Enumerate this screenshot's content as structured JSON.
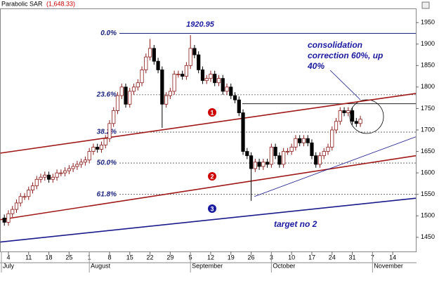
{
  "chart_data": {
    "type": "candlestick",
    "indicator_label": "Parabolic SAR",
    "indicator_value": "(1,648.33)",
    "peak_label": "1920.95",
    "note_lines": [
      "consolidation",
      "correction  60%, up",
      "40%"
    ],
    "target_label": "target no 2",
    "markers": [
      {
        "label": "1",
        "color": "#cc0000"
      },
      {
        "label": "2",
        "color": "#cc0000"
      },
      {
        "label": "3",
        "color": "#1a1aa0"
      }
    ],
    "months": [
      "July",
      "August",
      "September",
      "October",
      "November"
    ],
    "categories": [
      null,
      "4",
      null,
      null,
      null,
      null,
      "11",
      null,
      null,
      null,
      null,
      "18",
      null,
      null,
      null,
      null,
      "25",
      null,
      null,
      null,
      null,
      "1",
      null,
      null,
      null,
      null,
      "8",
      null,
      null,
      null,
      null,
      "15",
      null,
      null,
      null,
      null,
      "22",
      null,
      null,
      null,
      null,
      "29",
      null,
      null,
      null,
      null,
      "5",
      null,
      null,
      null,
      null,
      "12",
      null,
      null,
      null,
      null,
      "19",
      null,
      null,
      null,
      null,
      "26",
      null,
      null,
      null,
      null,
      "3",
      null,
      null,
      null,
      null,
      "10",
      null,
      null,
      null,
      null,
      "17",
      null,
      null,
      null,
      null,
      "24",
      null,
      null,
      null,
      null,
      "31",
      null,
      null,
      null,
      null,
      "7",
      null,
      null,
      null,
      null,
      "14",
      null
    ],
    "open": [
      1495,
      1485,
      1505,
      1515,
      1530,
      1545,
      1545,
      1560,
      1570,
      1585,
      1590,
      1595,
      1585,
      1590,
      1600,
      1600,
      1605,
      1610,
      1615,
      1620,
      1625,
      1630,
      1650,
      1660,
      1655,
      1665,
      1680,
      1715,
      1745,
      1780,
      1800,
      1760,
      1790,
      1800,
      1810,
      1840,
      1870,
      1890,
      1860,
      1840,
      1760,
      1780,
      1790,
      1830,
      1830,
      1825,
      1850,
      1890,
      1875,
      1840,
      1815,
      1820,
      1830,
      1810,
      1820,
      1790,
      1800,
      1780,
      1770,
      1740,
      1650,
      1640,
      1610,
      1625,
      1615,
      1625,
      1620,
      1660,
      1640,
      1620,
      1650,
      1650,
      1660,
      1680,
      1670,
      1680,
      1670,
      1640,
      1620,
      1640,
      1650,
      1660,
      1700,
      1720,
      1745,
      1740,
      1745,
      1720,
      1715,
      null,
      null,
      null,
      null,
      null,
      null,
      null,
      null,
      null
    ],
    "high": [
      1503,
      1513,
      1523,
      1538,
      1553,
      1553,
      1568,
      1578,
      1593,
      1598,
      1603,
      1603,
      1598,
      1608,
      1608,
      1613,
      1618,
      1623,
      1628,
      1633,
      1638,
      1658,
      1668,
      1668,
      1673,
      1688,
      1723,
      1753,
      1788,
      1808,
      1808,
      1798,
      1808,
      1818,
      1848,
      1878,
      1912,
      1898,
      1868,
      1848,
      1788,
      1798,
      1838,
      1838,
      1838,
      1858,
      1921,
      1898,
      1883,
      1848,
      1828,
      1838,
      1838,
      1828,
      1828,
      1808,
      1808,
      1788,
      1778,
      1748,
      1658,
      1648,
      1633,
      1633,
      1633,
      1633,
      1668,
      1668,
      1648,
      1658,
      1658,
      1668,
      1688,
      1688,
      1688,
      1688,
      1678,
      1648,
      1648,
      1658,
      1668,
      1708,
      1728,
      1753,
      1753,
      1753,
      1753,
      1728,
      1733,
      null,
      null,
      null,
      null,
      null,
      null,
      null,
      null,
      null
    ],
    "low": [
      1477,
      1477,
      1497,
      1507,
      1522,
      1537,
      1537,
      1552,
      1562,
      1577,
      1582,
      1577,
      1577,
      1582,
      1592,
      1592,
      1597,
      1602,
      1607,
      1612,
      1617,
      1622,
      1642,
      1647,
      1647,
      1657,
      1672,
      1707,
      1737,
      1772,
      1752,
      1752,
      1782,
      1792,
      1802,
      1832,
      1862,
      1852,
      1832,
      1705,
      1752,
      1772,
      1782,
      1822,
      1817,
      1817,
      1842,
      1867,
      1832,
      1807,
      1807,
      1812,
      1802,
      1802,
      1782,
      1782,
      1772,
      1762,
      1732,
      1642,
      1632,
      1535,
      1602,
      1607,
      1607,
      1612,
      1612,
      1632,
      1612,
      1612,
      1642,
      1642,
      1652,
      1662,
      1662,
      1662,
      1632,
      1612,
      1612,
      1632,
      1642,
      1652,
      1692,
      1712,
      1732,
      1732,
      1712,
      1707,
      1707,
      null,
      null,
      null,
      null,
      null,
      null,
      null,
      null,
      null
    ],
    "close": [
      1485,
      1505,
      1515,
      1530,
      1545,
      1545,
      1560,
      1570,
      1585,
      1590,
      1595,
      1585,
      1590,
      1600,
      1600,
      1605,
      1610,
      1615,
      1620,
      1625,
      1630,
      1650,
      1660,
      1655,
      1665,
      1680,
      1715,
      1745,
      1780,
      1800,
      1760,
      1790,
      1800,
      1810,
      1840,
      1870,
      1890,
      1860,
      1840,
      1760,
      1780,
      1790,
      1830,
      1830,
      1825,
      1850,
      1890,
      1875,
      1840,
      1815,
      1820,
      1830,
      1810,
      1820,
      1790,
      1800,
      1780,
      1770,
      1740,
      1650,
      1640,
      1610,
      1625,
      1615,
      1625,
      1620,
      1660,
      1640,
      1620,
      1650,
      1650,
      1660,
      1680,
      1670,
      1680,
      1670,
      1640,
      1620,
      1640,
      1650,
      1660,
      1700,
      1720,
      1745,
      1740,
      1745,
      1720,
      1715,
      1725,
      null,
      null,
      null,
      null,
      null,
      null,
      null,
      null,
      null
    ],
    "up_color": "#8b1a1a",
    "down_color": "#000000",
    "fib_levels": [
      {
        "value": 1925,
        "label": "0.0%"
      },
      {
        "value": 1782,
        "label": "23.6%"
      },
      {
        "value": 1695,
        "label": "38.2%"
      },
      {
        "value": 1623,
        "label": "50.0%"
      },
      {
        "value": 1550,
        "label": "61.8%"
      }
    ],
    "resistance": 1761,
    "trend_lines": [
      {
        "from": [
          -1,
          1646
        ],
        "to": [
          101.7,
          1785
        ],
        "color": "#a01818"
      },
      {
        "from": [
          -1,
          1491
        ],
        "to": [
          101.7,
          1640
        ],
        "color": "#a01818"
      },
      {
        "from": [
          -1,
          1439
        ],
        "to": [
          101.7,
          1541
        ],
        "color": "#1a1a8c"
      },
      {
        "from": [
          61.8,
          1545
        ],
        "to": [
          101.7,
          1684
        ],
        "color": "#1a1a8c"
      }
    ],
    "ylim": [
      1417,
      1983
    ],
    "yticks": [
      1450,
      1500,
      1550,
      1600,
      1650,
      1700,
      1750,
      1800,
      1850,
      1900,
      1950
    ]
  }
}
